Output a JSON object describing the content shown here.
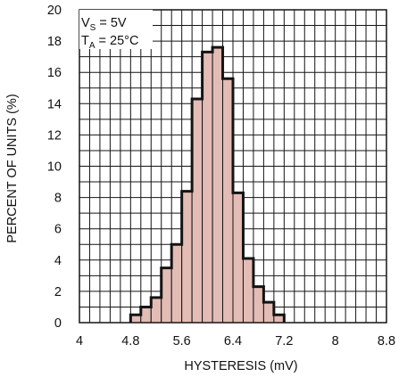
{
  "chart_data": {
    "type": "bar",
    "title": "",
    "xlabel": "HYSTERESIS (mV)",
    "ylabel": "PERCENT OF UNITS (%)",
    "xlim": [
      4,
      8.8
    ],
    "ylim": [
      0,
      20
    ],
    "grid": true,
    "x_ticks": [
      "4",
      "4.8",
      "5.6",
      "6.4",
      "7.2",
      "8",
      "8.8"
    ],
    "y_ticks": [
      "0",
      "2",
      "4",
      "6",
      "8",
      "10",
      "12",
      "14",
      "16",
      "18",
      "20"
    ],
    "bin_width": 0.16,
    "bins": [
      {
        "x0": 4.8,
        "value": 0.5
      },
      {
        "x0": 4.96,
        "value": 1.0
      },
      {
        "x0": 5.12,
        "value": 1.6
      },
      {
        "x0": 5.28,
        "value": 3.5
      },
      {
        "x0": 5.44,
        "value": 5.0
      },
      {
        "x0": 5.6,
        "value": 8.4
      },
      {
        "x0": 5.76,
        "value": 14.3
      },
      {
        "x0": 5.92,
        "value": 17.3
      },
      {
        "x0": 6.08,
        "value": 17.6
      },
      {
        "x0": 6.24,
        "value": 15.6
      },
      {
        "x0": 6.4,
        "value": 8.3
      },
      {
        "x0": 6.56,
        "value": 4.1
      },
      {
        "x0": 6.72,
        "value": 2.3
      },
      {
        "x0": 6.88,
        "value": 1.3
      },
      {
        "x0": 7.04,
        "value": 0.5
      }
    ],
    "annotation": {
      "line1": {
        "main": "V",
        "sub": "S",
        "rest": " = 5V"
      },
      "line2": {
        "main": "T",
        "sub": "A",
        "rest": " = 25°C"
      }
    },
    "colors": {
      "fill": "#e3bcb6",
      "outline": "#141414",
      "grid": "#141414"
    }
  }
}
